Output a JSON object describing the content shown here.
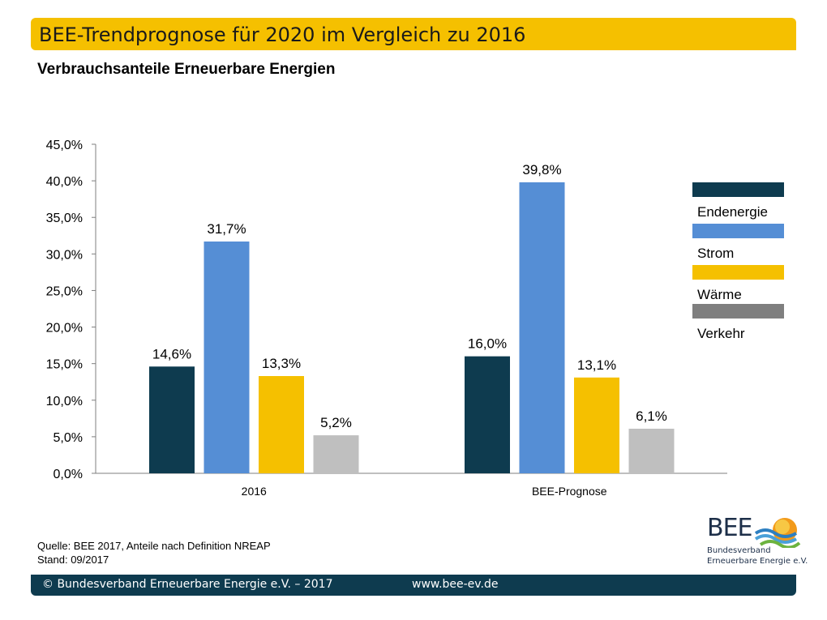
{
  "header": {
    "title": "BEE-Trendprognose für 2020 im Vergleich zu 2016"
  },
  "subtitle": "Verbrauchsanteile Erneuerbare Energien",
  "source": {
    "line1": "Quelle: BEE 2017, Anteile nach Definition NREAP",
    "line2": "Stand: 09/2017"
  },
  "footer": {
    "copyright": "© Bundesverband Erneuerbare Energie e.V. – 2017",
    "url": "www.bee-ev.de"
  },
  "logo": {
    "text": "BEE",
    "line1": "Bundesverband",
    "line2": "Erneuerbare Energie e.V."
  },
  "chart_data": {
    "type": "bar",
    "categories": [
      "2016",
      "BEE-Prognose"
    ],
    "series": [
      {
        "name": "Endenergie",
        "color": "#0e3b4f",
        "values": [
          14.6,
          16.0
        ],
        "labels": [
          "14,6%",
          "16,0%"
        ]
      },
      {
        "name": "Strom",
        "color": "#558ed5",
        "values": [
          31.7,
          39.8
        ],
        "labels": [
          "31,7%",
          "39,8%"
        ]
      },
      {
        "name": "Wärme",
        "color": "#f5c000",
        "values": [
          13.3,
          13.1
        ],
        "labels": [
          "13,3%",
          "13,1%"
        ]
      },
      {
        "name": "Verkehr",
        "color": "#bfbfbf",
        "values": [
          5.2,
          6.1
        ],
        "labels": [
          "5,2%",
          "6,1%"
        ]
      }
    ],
    "legend_colors": [
      "#0e3b4f",
      "#558ed5",
      "#f5c000",
      "#7f7f7f"
    ],
    "ylim": [
      0,
      45
    ],
    "ytick_values": [
      0,
      5,
      10,
      15,
      20,
      25,
      30,
      35,
      40,
      45
    ],
    "ytick_labels": [
      "0,0%",
      "5,0%",
      "10,0%",
      "15,0%",
      "20,0%",
      "25,0%",
      "30,0%",
      "35,0%",
      "40,0%",
      "45,0%"
    ],
    "legend_position": "right",
    "grid": false
  }
}
